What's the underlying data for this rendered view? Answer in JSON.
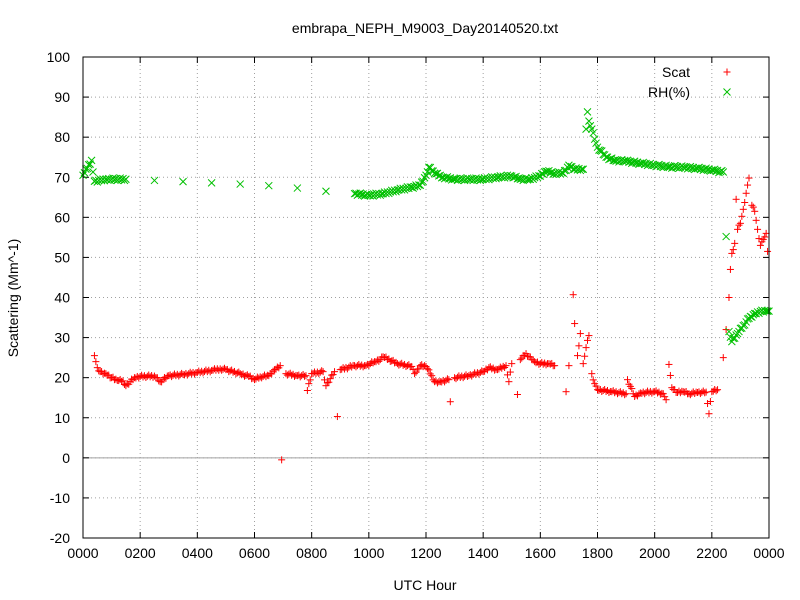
{
  "chart_data": {
    "type": "scatter",
    "title": "embrapa_NEPH_M9003_Day20140520.txt",
    "xlabel": "UTC Hour",
    "ylabel": "Scattering (Mm^-1)",
    "xlim": [
      0,
      24
    ],
    "ylim": [
      -20,
      100
    ],
    "x_ticks": [
      0,
      2,
      4,
      6,
      8,
      10,
      12,
      14,
      16,
      18,
      20,
      22,
      24
    ],
    "x_tick_labels": [
      "0000",
      "0200",
      "0400",
      "0600",
      "0800",
      "1000",
      "1200",
      "1400",
      "1600",
      "1800",
      "2000",
      "2200",
      "0000"
    ],
    "y_ticks": [
      -20,
      -10,
      0,
      10,
      20,
      30,
      40,
      50,
      60,
      70,
      80,
      90,
      100
    ],
    "y_tick_labels": [
      "-20",
      "-10",
      "0",
      "10",
      "20",
      "30",
      "40",
      "50",
      "60",
      "70",
      "80",
      "90",
      "100"
    ],
    "grid": true,
    "zero_line": true,
    "legend_position": "top-right",
    "series": [
      {
        "name": "Scat",
        "marker": "plus",
        "color": "#ff0000",
        "points": [
          [
            0.4,
            25.5
          ],
          [
            0.5,
            22.5
          ],
          [
            0.6,
            21.5
          ],
          [
            0.8,
            21.0
          ],
          [
            1.0,
            20.0
          ],
          [
            1.2,
            19.3
          ],
          [
            1.4,
            19.2
          ],
          [
            1.5,
            18.0
          ],
          [
            1.8,
            20.0
          ],
          [
            2.0,
            20.3
          ],
          [
            2.5,
            20.4
          ],
          [
            2.7,
            19.0
          ],
          [
            3.0,
            20.5
          ],
          [
            3.5,
            20.8
          ],
          [
            4.0,
            21.3
          ],
          [
            4.5,
            21.8
          ],
          [
            4.8,
            22.2
          ],
          [
            5.0,
            22.0
          ],
          [
            5.5,
            21.0
          ],
          [
            5.8,
            20.3
          ],
          [
            6.0,
            19.5
          ],
          [
            6.2,
            20.2
          ],
          [
            6.5,
            20.5
          ],
          [
            6.7,
            22.0
          ],
          [
            6.9,
            23.0
          ],
          [
            6.95,
            -0.5
          ],
          [
            7.1,
            21.0
          ],
          [
            7.5,
            20.5
          ],
          [
            7.8,
            20.5
          ],
          [
            7.85,
            16.8
          ],
          [
            8.0,
            21.0
          ],
          [
            8.4,
            21.5
          ],
          [
            8.5,
            18.0
          ],
          [
            8.8,
            21.5
          ],
          [
            8.9,
            10.3
          ],
          [
            9.0,
            22.0
          ],
          [
            9.5,
            23.0
          ],
          [
            9.9,
            23.0
          ],
          [
            10.2,
            24.0
          ],
          [
            10.4,
            24.5
          ],
          [
            10.5,
            25.2
          ],
          [
            11.0,
            23.5
          ],
          [
            11.5,
            22.8
          ],
          [
            11.6,
            21.0
          ],
          [
            11.8,
            23.0
          ],
          [
            12.0,
            22.8
          ],
          [
            12.2,
            20.5
          ],
          [
            12.3,
            19.0
          ],
          [
            12.5,
            19.0
          ],
          [
            12.8,
            19.5
          ],
          [
            12.85,
            14.0
          ],
          [
            13.0,
            20.0
          ],
          [
            13.5,
            20.5
          ],
          [
            14.0,
            21.5
          ],
          [
            14.2,
            22.5
          ],
          [
            14.5,
            22.0
          ],
          [
            14.8,
            23.0
          ],
          [
            14.9,
            19.0
          ],
          [
            15.0,
            23.5
          ],
          [
            15.2,
            15.8
          ],
          [
            15.3,
            24.5
          ],
          [
            15.5,
            26.0
          ],
          [
            15.7,
            24.5
          ],
          [
            15.8,
            24.0
          ],
          [
            16.0,
            23.5
          ],
          [
            16.3,
            23.5
          ],
          [
            16.5,
            23.0
          ],
          [
            16.9,
            16.5
          ],
          [
            17.0,
            23.0
          ],
          [
            17.15,
            40.7
          ],
          [
            17.2,
            33.5
          ],
          [
            17.3,
            25.5
          ],
          [
            17.4,
            31.0
          ],
          [
            17.5,
            23.5
          ],
          [
            17.6,
            27.5
          ],
          [
            17.7,
            30.5
          ],
          [
            17.8,
            21.0
          ],
          [
            17.9,
            18.5
          ],
          [
            18.0,
            17.0
          ],
          [
            18.5,
            16.5
          ],
          [
            19.0,
            16.0
          ],
          [
            19.05,
            19.5
          ],
          [
            19.3,
            15.3
          ],
          [
            19.5,
            16.2
          ],
          [
            20.0,
            16.5
          ],
          [
            20.3,
            16.0
          ],
          [
            20.4,
            14.5
          ],
          [
            20.5,
            23.3
          ],
          [
            20.6,
            17.5
          ],
          [
            20.8,
            16.3
          ],
          [
            21.0,
            16.5
          ],
          [
            21.2,
            16.0
          ],
          [
            21.5,
            16.3
          ],
          [
            21.8,
            16.4
          ],
          [
            21.9,
            11.0
          ],
          [
            22.0,
            16.5
          ],
          [
            22.2,
            17.0
          ],
          [
            22.4,
            25.0
          ],
          [
            22.5,
            32.0
          ],
          [
            22.6,
            40.0
          ],
          [
            22.65,
            47.0
          ],
          [
            22.7,
            51.0
          ],
          [
            22.8,
            53.5
          ],
          [
            22.85,
            64.5
          ],
          [
            22.9,
            57.0
          ],
          [
            23.0,
            58.5
          ],
          [
            23.1,
            62.0
          ],
          [
            23.2,
            66.0
          ],
          [
            23.3,
            69.8
          ],
          [
            23.4,
            63.0
          ],
          [
            23.5,
            61.5
          ],
          [
            23.6,
            57.0
          ],
          [
            23.7,
            53.0
          ],
          [
            23.8,
            54.5
          ],
          [
            23.9,
            56.0
          ],
          [
            23.95,
            51.5
          ]
        ]
      },
      {
        "name": "RH(%)",
        "marker": "cross",
        "color": "#00c000",
        "points": [
          [
            0.0,
            70.5
          ],
          [
            0.3,
            74.2
          ],
          [
            0.4,
            69.0
          ],
          [
            0.8,
            69.5
          ],
          [
            1.5,
            69.5
          ],
          [
            2.5,
            69.2
          ],
          [
            3.5,
            68.9
          ],
          [
            4.5,
            68.6
          ],
          [
            5.5,
            68.3
          ],
          [
            6.5,
            67.9
          ],
          [
            7.5,
            67.3
          ],
          [
            8.5,
            66.5
          ],
          [
            9.5,
            65.9
          ],
          [
            10.0,
            65.5
          ],
          [
            10.5,
            65.9
          ],
          [
            11.0,
            66.8
          ],
          [
            11.5,
            67.5
          ],
          [
            11.8,
            68.0
          ],
          [
            12.0,
            70.5
          ],
          [
            12.1,
            72.5
          ],
          [
            12.3,
            71.0
          ],
          [
            12.6,
            70.0
          ],
          [
            13.0,
            69.5
          ],
          [
            13.5,
            69.5
          ],
          [
            14.0,
            69.5
          ],
          [
            14.5,
            70.0
          ],
          [
            15.0,
            70.3
          ],
          [
            15.3,
            69.5
          ],
          [
            15.6,
            69.5
          ],
          [
            16.0,
            70.3
          ],
          [
            16.2,
            71.5
          ],
          [
            16.5,
            71.0
          ],
          [
            16.8,
            71.0
          ],
          [
            17.0,
            73.0
          ],
          [
            17.2,
            72.0
          ],
          [
            17.5,
            72.0
          ],
          [
            17.6,
            82.0
          ],
          [
            17.65,
            86.3
          ],
          [
            17.7,
            84.0
          ],
          [
            17.8,
            82.0
          ],
          [
            17.9,
            79.5
          ],
          [
            18.0,
            77.5
          ],
          [
            18.3,
            75.0
          ],
          [
            18.6,
            74.2
          ],
          [
            19.0,
            74.0
          ],
          [
            19.5,
            73.5
          ],
          [
            20.0,
            73.0
          ],
          [
            20.5,
            72.6
          ],
          [
            21.0,
            72.5
          ],
          [
            21.5,
            72.2
          ],
          [
            22.0,
            71.8
          ],
          [
            22.4,
            71.3
          ],
          [
            22.5,
            55.2
          ],
          [
            22.6,
            31.5
          ],
          [
            22.7,
            29.0
          ],
          [
            22.9,
            31.0
          ],
          [
            23.1,
            33.0
          ],
          [
            23.3,
            34.8
          ],
          [
            23.5,
            36.0
          ],
          [
            23.7,
            36.5
          ],
          [
            23.9,
            36.6
          ],
          [
            24.0,
            36.6
          ]
        ]
      }
    ]
  }
}
